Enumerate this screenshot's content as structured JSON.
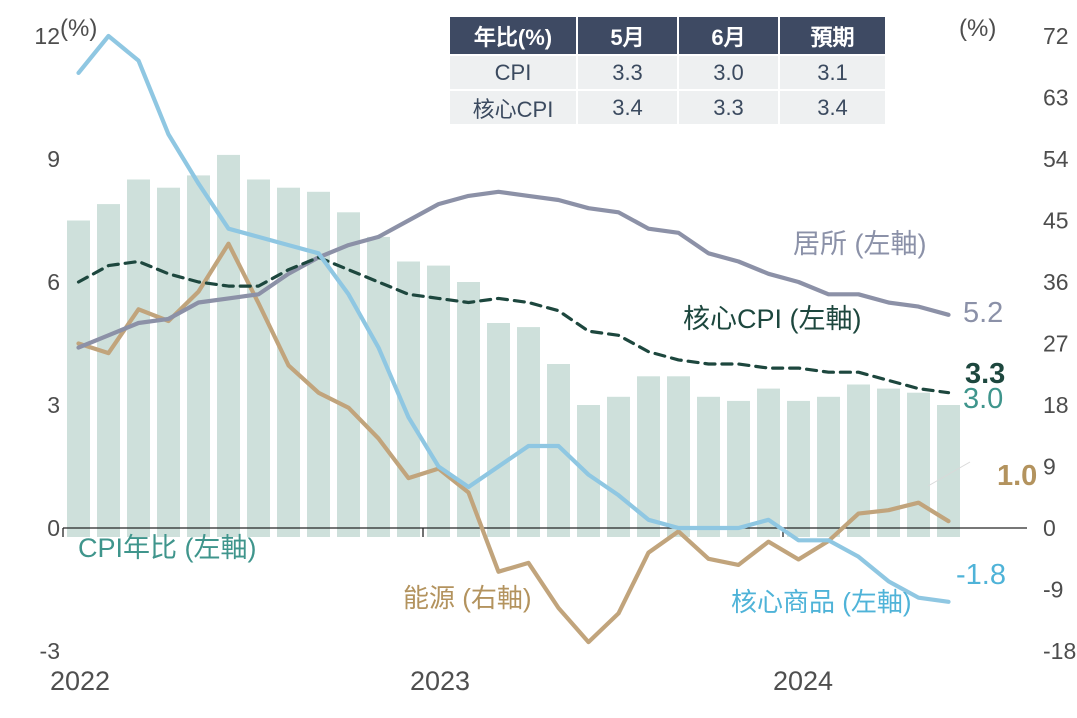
{
  "table": {
    "header": [
      "年比(%)",
      "5月",
      "6月",
      "預期"
    ],
    "rows": [
      [
        "CPI",
        "3.3",
        "3.0",
        "3.1"
      ],
      [
        "核心CPI",
        "3.4",
        "3.3",
        "3.4"
      ]
    ],
    "header_bg": "#3e4a63",
    "header_text_color": "#ffffff",
    "row_bg": "#eef0f1",
    "row_text_color": "#3b4a5f"
  },
  "labels": {
    "axis_text_color": "#4d4d4d",
    "year_text_color": "#4f4f4f"
  },
  "chart_data": {
    "type": "bar+line combo, dual y-axis",
    "title": "",
    "x": [
      "2022-01",
      "2022-02",
      "2022-03",
      "2022-04",
      "2022-05",
      "2022-06",
      "2022-07",
      "2022-08",
      "2022-09",
      "2022-10",
      "2022-11",
      "2022-12",
      "2023-01",
      "2023-02",
      "2023-03",
      "2023-04",
      "2023-05",
      "2023-06",
      "2023-07",
      "2023-08",
      "2023-09",
      "2023-10",
      "2023-11",
      "2023-12",
      "2024-01",
      "2024-02",
      "2024-03",
      "2024-04",
      "2024-05",
      "2024-06"
    ],
    "x_tick_labels": [
      "2022",
      "2023",
      "2024"
    ],
    "left_axis": {
      "unit": "(%)",
      "min": -3,
      "max": 12,
      "ticks": [
        -3,
        0,
        3,
        6,
        9,
        12
      ]
    },
    "right_axis": {
      "unit": "(%)",
      "min": -18,
      "max": 72,
      "ticks": [
        -18,
        -9,
        0,
        9,
        18,
        27,
        36,
        45,
        54,
        63,
        72
      ]
    },
    "grid": false,
    "legend_position": "inline-labels",
    "axis_line_color": "#262626",
    "series": [
      {
        "key": "cpi",
        "name": "CPI年比 (左軸)",
        "type": "bar",
        "axis": "left",
        "color": "#cee0db",
        "label_color": "#3f958c",
        "end_label": "3.0",
        "values": [
          7.5,
          7.9,
          8.5,
          8.3,
          8.6,
          9.1,
          8.5,
          8.3,
          8.2,
          7.7,
          7.1,
          6.5,
          6.4,
          6.0,
          5.0,
          4.9,
          4.0,
          3.0,
          3.2,
          3.7,
          3.7,
          3.2,
          3.1,
          3.4,
          3.1,
          3.2,
          3.5,
          3.4,
          3.3,
          3.0
        ]
      },
      {
        "key": "energy",
        "name": "能源 (右軸)",
        "type": "line",
        "axis": "right",
        "color": "#c1a47c",
        "label_color": "#b3935e",
        "end_label": "1.0",
        "values": [
          27.0,
          25.6,
          32.0,
          30.3,
          34.6,
          41.6,
          32.9,
          23.8,
          19.8,
          17.6,
          13.1,
          7.3,
          8.7,
          5.2,
          -6.4,
          -5.1,
          -11.7,
          -16.7,
          -12.5,
          -3.6,
          -0.5,
          -4.5,
          -5.4,
          -2.0,
          -4.6,
          -1.9,
          2.1,
          2.6,
          3.7,
          1.0
        ]
      },
      {
        "key": "shelter",
        "name": "居所 (左軸)",
        "type": "line",
        "axis": "left",
        "color": "#8c91a7",
        "label_color": "#8b91a8",
        "end_label": "5.2",
        "values": [
          4.4,
          4.7,
          5.0,
          5.1,
          5.5,
          5.6,
          5.7,
          6.2,
          6.6,
          6.9,
          7.1,
          7.5,
          7.9,
          8.1,
          8.2,
          8.1,
          8.0,
          7.8,
          7.7,
          7.3,
          7.2,
          6.7,
          6.5,
          6.2,
          6.0,
          5.7,
          5.7,
          5.5,
          5.4,
          5.2
        ]
      },
      {
        "key": "core_cpi",
        "name": "核心CPI (左軸)",
        "type": "line",
        "dashed": true,
        "axis": "left",
        "color": "#1d473e",
        "label_color": "#1d473e",
        "end_label": "3.3",
        "values": [
          6.0,
          6.4,
          6.5,
          6.2,
          6.0,
          5.9,
          5.9,
          6.3,
          6.6,
          6.3,
          6.0,
          5.7,
          5.6,
          5.5,
          5.6,
          5.5,
          5.3,
          4.8,
          4.7,
          4.3,
          4.1,
          4.0,
          4.0,
          3.9,
          3.9,
          3.8,
          3.8,
          3.6,
          3.4,
          3.3
        ]
      },
      {
        "key": "core_goods",
        "name": "核心商品 (左軸)",
        "type": "line",
        "axis": "left",
        "color": "#8fc7e2",
        "label_color": "#4fb3d8",
        "end_label": "-1.8",
        "values": [
          11.1,
          12.0,
          11.4,
          9.6,
          8.4,
          7.3,
          7.1,
          6.9,
          6.7,
          5.7,
          4.4,
          2.7,
          1.5,
          1.0,
          1.5,
          2.0,
          2.0,
          1.3,
          0.8,
          0.2,
          0.0,
          0.0,
          0.0,
          0.2,
          -0.3,
          -0.3,
          -0.7,
          -1.3,
          -1.7,
          -1.8
        ]
      }
    ]
  }
}
